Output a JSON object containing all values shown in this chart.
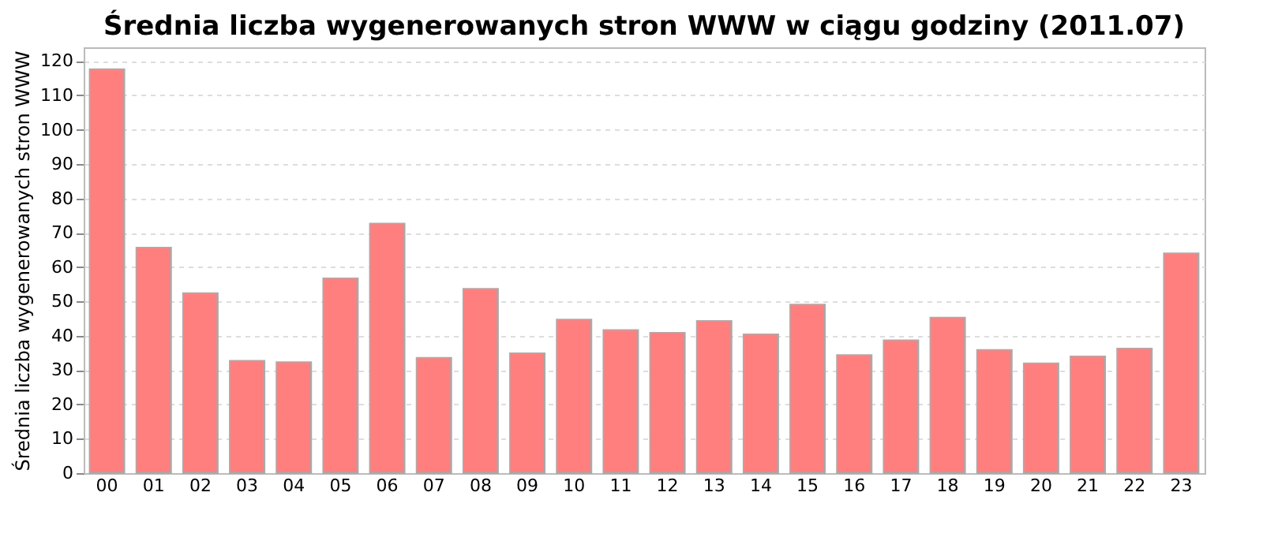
{
  "chart_data": {
    "type": "bar",
    "title": "Średnia liczba wygenerowanych stron WWW w ciągu godziny (2011.07)",
    "ylabel": "Średnia liczba wygenerowanych stron WWW",
    "categories": [
      "00",
      "01",
      "02",
      "03",
      "04",
      "05",
      "06",
      "07",
      "08",
      "09",
      "10",
      "11",
      "12",
      "13",
      "14",
      "15",
      "16",
      "17",
      "18",
      "19",
      "20",
      "21",
      "22",
      "23"
    ],
    "values": [
      117.6,
      65.7,
      52.4,
      32.7,
      32.3,
      56.7,
      72.7,
      33.6,
      53.7,
      34.9,
      44.7,
      41.7,
      40.9,
      44.3,
      40.4,
      49.1,
      34.4,
      38.7,
      45.3,
      35.9,
      32,
      34,
      36.3,
      64
    ],
    "color": "#ff7f7f",
    "ylim": [
      0,
      124
    ],
    "yticks": [
      0,
      10,
      20,
      30,
      40,
      50,
      60,
      70,
      80,
      90,
      100,
      110,
      120
    ],
    "grid": "y"
  }
}
